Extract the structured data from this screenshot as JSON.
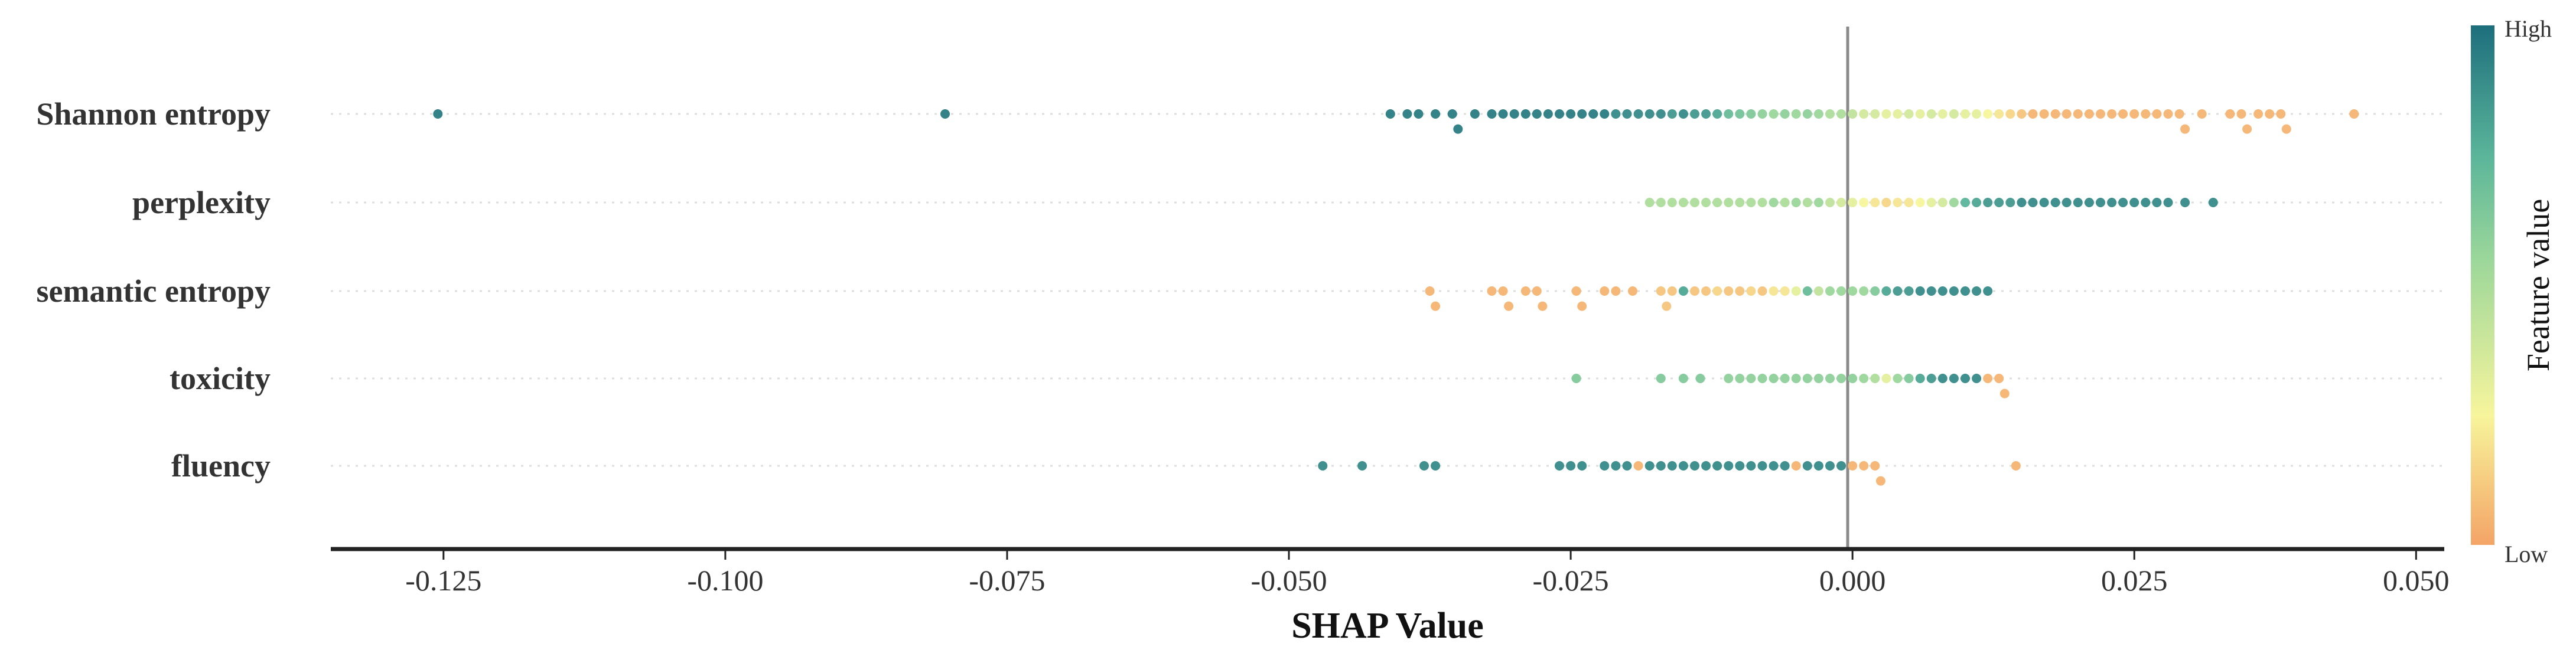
{
  "chart_data": {
    "type": "scatter",
    "subtype": "shap-beeswarm",
    "title": "",
    "xlabel": "SHAP Value",
    "xlim": [
      -0.135,
      0.0525
    ],
    "xticks": [
      -0.125,
      -0.1,
      -0.075,
      -0.05,
      -0.025,
      0.0,
      0.025,
      0.05
    ],
    "xtick_labels": [
      "-0.125",
      "-0.100",
      "-0.075",
      "-0.050",
      "-0.025",
      "0.000",
      "0.025",
      "0.050"
    ],
    "features": [
      "Shannon entropy",
      "perplexity",
      "semantic entropy",
      "toxicity",
      "fluency"
    ],
    "colorbar": {
      "title": "Feature value",
      "high_label": "High",
      "low_label": "Low",
      "colors": [
        "#f4a466",
        "#f7f59c",
        "#9bd79a",
        "#5ab59a",
        "#1d6e7c"
      ]
    },
    "series": [
      {
        "name": "Shannon entropy",
        "points": [
          [
            -0.1255,
            0.95
          ],
          [
            -0.0805,
            0.95
          ],
          [
            -0.041,
            0.95
          ],
          [
            -0.0395,
            0.95
          ],
          [
            -0.0385,
            0.95
          ],
          [
            -0.037,
            0.95
          ],
          [
            -0.0355,
            0.95
          ],
          [
            -0.035,
            0.95
          ],
          [
            -0.0335,
            0.95
          ],
          [
            -0.032,
            0.95
          ],
          [
            -0.031,
            0.95
          ],
          [
            -0.03,
            0.95
          ],
          [
            -0.029,
            0.95
          ],
          [
            -0.028,
            0.95
          ],
          [
            -0.027,
            0.95
          ],
          [
            -0.026,
            0.95
          ],
          [
            -0.025,
            0.95
          ],
          [
            -0.024,
            0.95
          ],
          [
            -0.023,
            0.95
          ],
          [
            -0.022,
            0.95
          ],
          [
            -0.021,
            0.9
          ],
          [
            -0.02,
            0.9
          ],
          [
            -0.019,
            0.9
          ],
          [
            -0.018,
            0.9
          ],
          [
            -0.017,
            0.9
          ],
          [
            -0.016,
            0.85
          ],
          [
            -0.015,
            0.9
          ],
          [
            -0.014,
            0.85
          ],
          [
            -0.013,
            0.85
          ],
          [
            -0.012,
            0.8
          ],
          [
            -0.011,
            0.7
          ],
          [
            -0.01,
            0.65
          ],
          [
            -0.009,
            0.6
          ],
          [
            -0.008,
            0.55
          ],
          [
            -0.007,
            0.5
          ],
          [
            -0.006,
            0.55
          ],
          [
            -0.005,
            0.5
          ],
          [
            -0.004,
            0.55
          ],
          [
            -0.003,
            0.5
          ],
          [
            -0.002,
            0.45
          ],
          [
            -0.001,
            0.45
          ],
          [
            0.0,
            0.4
          ],
          [
            0.001,
            0.35
          ],
          [
            0.002,
            0.35
          ],
          [
            0.003,
            0.3
          ],
          [
            0.004,
            0.3
          ],
          [
            0.005,
            0.35
          ],
          [
            0.006,
            0.3
          ],
          [
            0.007,
            0.35
          ],
          [
            0.008,
            0.3
          ],
          [
            0.009,
            0.35
          ],
          [
            0.01,
            0.3
          ],
          [
            0.011,
            0.3
          ],
          [
            0.012,
            0.25
          ],
          [
            0.013,
            0.2
          ],
          [
            0.014,
            0.15
          ],
          [
            0.015,
            0.1
          ],
          [
            0.016,
            0.05
          ],
          [
            0.017,
            0.05
          ],
          [
            0.018,
            0.05
          ],
          [
            0.019,
            0.05
          ],
          [
            0.02,
            0.05
          ],
          [
            0.021,
            0.05
          ],
          [
            0.022,
            0.05
          ],
          [
            0.023,
            0.05
          ],
          [
            0.024,
            0.05
          ],
          [
            0.025,
            0.05
          ],
          [
            0.026,
            0.05
          ],
          [
            0.027,
            0.05
          ],
          [
            0.028,
            0.05
          ],
          [
            0.029,
            0.05
          ],
          [
            0.0295,
            0.05
          ],
          [
            0.031,
            0.05
          ],
          [
            0.0335,
            0.05
          ],
          [
            0.0345,
            0.05
          ],
          [
            0.035,
            0.05
          ],
          [
            0.036,
            0.05
          ],
          [
            0.037,
            0.05
          ],
          [
            0.038,
            0.05
          ],
          [
            0.0385,
            0.05
          ],
          [
            0.0445,
            0.05
          ]
        ]
      },
      {
        "name": "perplexity",
        "points": [
          [
            -0.018,
            0.45
          ],
          [
            -0.017,
            0.45
          ],
          [
            -0.016,
            0.45
          ],
          [
            -0.015,
            0.45
          ],
          [
            -0.014,
            0.45
          ],
          [
            -0.013,
            0.45
          ],
          [
            -0.012,
            0.45
          ],
          [
            -0.011,
            0.45
          ],
          [
            -0.01,
            0.45
          ],
          [
            -0.009,
            0.45
          ],
          [
            -0.008,
            0.45
          ],
          [
            -0.007,
            0.5
          ],
          [
            -0.006,
            0.45
          ],
          [
            -0.005,
            0.5
          ],
          [
            -0.004,
            0.45
          ],
          [
            -0.003,
            0.5
          ],
          [
            -0.002,
            0.4
          ],
          [
            -0.001,
            0.35
          ],
          [
            0.0,
            0.3
          ],
          [
            0.001,
            0.25
          ],
          [
            0.002,
            0.2
          ],
          [
            0.003,
            0.15
          ],
          [
            0.004,
            0.2
          ],
          [
            0.005,
            0.2
          ],
          [
            0.006,
            0.25
          ],
          [
            0.007,
            0.3
          ],
          [
            0.008,
            0.35
          ],
          [
            0.009,
            0.5
          ],
          [
            0.01,
            0.75
          ],
          [
            0.011,
            0.8
          ],
          [
            0.012,
            0.85
          ],
          [
            0.013,
            0.85
          ],
          [
            0.014,
            0.85
          ],
          [
            0.015,
            0.9
          ],
          [
            0.016,
            0.9
          ],
          [
            0.017,
            0.9
          ],
          [
            0.018,
            0.9
          ],
          [
            0.019,
            0.9
          ],
          [
            0.02,
            0.9
          ],
          [
            0.021,
            0.9
          ],
          [
            0.022,
            0.9
          ],
          [
            0.023,
            0.9
          ],
          [
            0.024,
            0.9
          ],
          [
            0.025,
            0.9
          ],
          [
            0.026,
            0.9
          ],
          [
            0.027,
            0.9
          ],
          [
            0.028,
            0.9
          ],
          [
            0.0295,
            0.9
          ],
          [
            0.032,
            0.9
          ]
        ]
      },
      {
        "name": "semantic entropy",
        "points": [
          [
            -0.0375,
            0.05
          ],
          [
            -0.037,
            0.05
          ],
          [
            -0.032,
            0.05
          ],
          [
            -0.031,
            0.05
          ],
          [
            -0.0305,
            0.05
          ],
          [
            -0.029,
            0.05
          ],
          [
            -0.028,
            0.05
          ],
          [
            -0.0275,
            0.05
          ],
          [
            -0.0245,
            0.05
          ],
          [
            -0.024,
            0.05
          ],
          [
            -0.022,
            0.05
          ],
          [
            -0.021,
            0.05
          ],
          [
            -0.0195,
            0.05
          ],
          [
            -0.017,
            0.1
          ],
          [
            -0.0165,
            0.1
          ],
          [
            -0.016,
            0.1
          ],
          [
            -0.015,
            0.8
          ],
          [
            -0.014,
            0.1
          ],
          [
            -0.013,
            0.1
          ],
          [
            -0.012,
            0.15
          ],
          [
            -0.011,
            0.1
          ],
          [
            -0.01,
            0.1
          ],
          [
            -0.009,
            0.15
          ],
          [
            -0.008,
            0.1
          ],
          [
            -0.007,
            0.2
          ],
          [
            -0.006,
            0.2
          ],
          [
            -0.005,
            0.3
          ],
          [
            -0.004,
            0.7
          ],
          [
            -0.003,
            0.4
          ],
          [
            -0.002,
            0.5
          ],
          [
            -0.001,
            0.5
          ],
          [
            0.0,
            0.5
          ],
          [
            0.001,
            0.5
          ],
          [
            0.002,
            0.6
          ],
          [
            0.003,
            0.8
          ],
          [
            0.004,
            0.85
          ],
          [
            0.005,
            0.85
          ],
          [
            0.006,
            0.9
          ],
          [
            0.007,
            0.9
          ],
          [
            0.008,
            0.9
          ],
          [
            0.009,
            0.9
          ],
          [
            0.01,
            0.9
          ],
          [
            0.011,
            0.9
          ],
          [
            0.012,
            0.9
          ]
        ]
      },
      {
        "name": "toxicity",
        "points": [
          [
            -0.0245,
            0.6
          ],
          [
            -0.017,
            0.6
          ],
          [
            -0.015,
            0.6
          ],
          [
            -0.0135,
            0.6
          ],
          [
            -0.011,
            0.55
          ],
          [
            -0.01,
            0.55
          ],
          [
            -0.009,
            0.55
          ],
          [
            -0.008,
            0.55
          ],
          [
            -0.007,
            0.55
          ],
          [
            -0.006,
            0.55
          ],
          [
            -0.005,
            0.55
          ],
          [
            -0.004,
            0.55
          ],
          [
            -0.003,
            0.55
          ],
          [
            -0.002,
            0.55
          ],
          [
            -0.001,
            0.55
          ],
          [
            0.0,
            0.55
          ],
          [
            0.001,
            0.5
          ],
          [
            0.002,
            0.45
          ],
          [
            0.003,
            0.3
          ],
          [
            0.004,
            0.5
          ],
          [
            0.005,
            0.6
          ],
          [
            0.006,
            0.8
          ],
          [
            0.007,
            0.85
          ],
          [
            0.008,
            0.9
          ],
          [
            0.009,
            0.9
          ],
          [
            0.01,
            0.9
          ],
          [
            0.011,
            0.9
          ],
          [
            0.012,
            0.05
          ],
          [
            0.013,
            0.05
          ],
          [
            0.0135,
            0.05
          ]
        ]
      },
      {
        "name": "fluency",
        "points": [
          [
            -0.047,
            0.9
          ],
          [
            -0.0435,
            0.9
          ],
          [
            -0.038,
            0.9
          ],
          [
            -0.037,
            0.9
          ],
          [
            -0.026,
            0.9
          ],
          [
            -0.025,
            0.9
          ],
          [
            -0.024,
            0.9
          ],
          [
            -0.022,
            0.9
          ],
          [
            -0.021,
            0.9
          ],
          [
            -0.02,
            0.9
          ],
          [
            -0.019,
            0.05
          ],
          [
            -0.018,
            0.9
          ],
          [
            -0.017,
            0.9
          ],
          [
            -0.016,
            0.9
          ],
          [
            -0.015,
            0.9
          ],
          [
            -0.014,
            0.9
          ],
          [
            -0.013,
            0.9
          ],
          [
            -0.012,
            0.9
          ],
          [
            -0.011,
            0.9
          ],
          [
            -0.01,
            0.9
          ],
          [
            -0.009,
            0.9
          ],
          [
            -0.008,
            0.9
          ],
          [
            -0.007,
            0.9
          ],
          [
            -0.006,
            0.9
          ],
          [
            -0.005,
            0.05
          ],
          [
            -0.004,
            0.9
          ],
          [
            -0.003,
            0.9
          ],
          [
            -0.002,
            0.9
          ],
          [
            -0.001,
            0.9
          ],
          [
            0.0,
            0.05
          ],
          [
            0.001,
            0.05
          ],
          [
            0.002,
            0.05
          ],
          [
            0.0025,
            0.05
          ],
          [
            0.0145,
            0.05
          ]
        ]
      }
    ]
  }
}
